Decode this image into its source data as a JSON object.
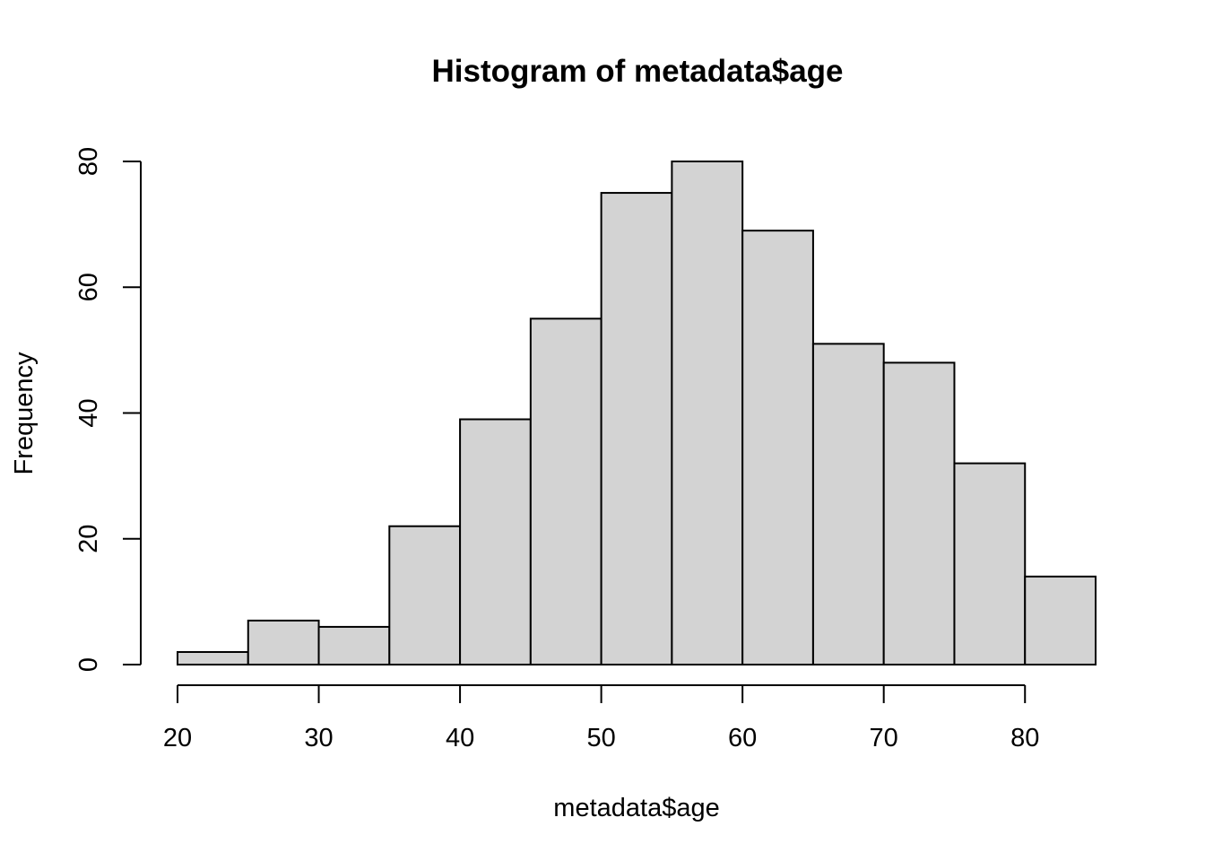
{
  "chart_data": {
    "type": "bar",
    "title": "Histogram of metadata$age",
    "xlabel": "metadata$age",
    "ylabel": "Frequency",
    "bins": [
      {
        "start": 20,
        "end": 25,
        "count": 2
      },
      {
        "start": 25,
        "end": 30,
        "count": 7
      },
      {
        "start": 30,
        "end": 35,
        "count": 6
      },
      {
        "start": 35,
        "end": 40,
        "count": 22
      },
      {
        "start": 40,
        "end": 45,
        "count": 39
      },
      {
        "start": 45,
        "end": 50,
        "count": 55
      },
      {
        "start": 50,
        "end": 55,
        "count": 75
      },
      {
        "start": 55,
        "end": 60,
        "count": 80
      },
      {
        "start": 60,
        "end": 65,
        "count": 69
      },
      {
        "start": 65,
        "end": 70,
        "count": 51
      },
      {
        "start": 70,
        "end": 75,
        "count": 48
      },
      {
        "start": 75,
        "end": 80,
        "count": 32
      },
      {
        "start": 80,
        "end": 85,
        "count": 14
      }
    ],
    "x_ticks": [
      20,
      30,
      40,
      50,
      60,
      70,
      80
    ],
    "y_ticks": [
      0,
      20,
      40,
      60,
      80
    ],
    "xlim": [
      20,
      85
    ],
    "ylim": [
      0,
      80
    ],
    "bar_color": "#d3d3d3",
    "grid": false,
    "legend": "none"
  }
}
